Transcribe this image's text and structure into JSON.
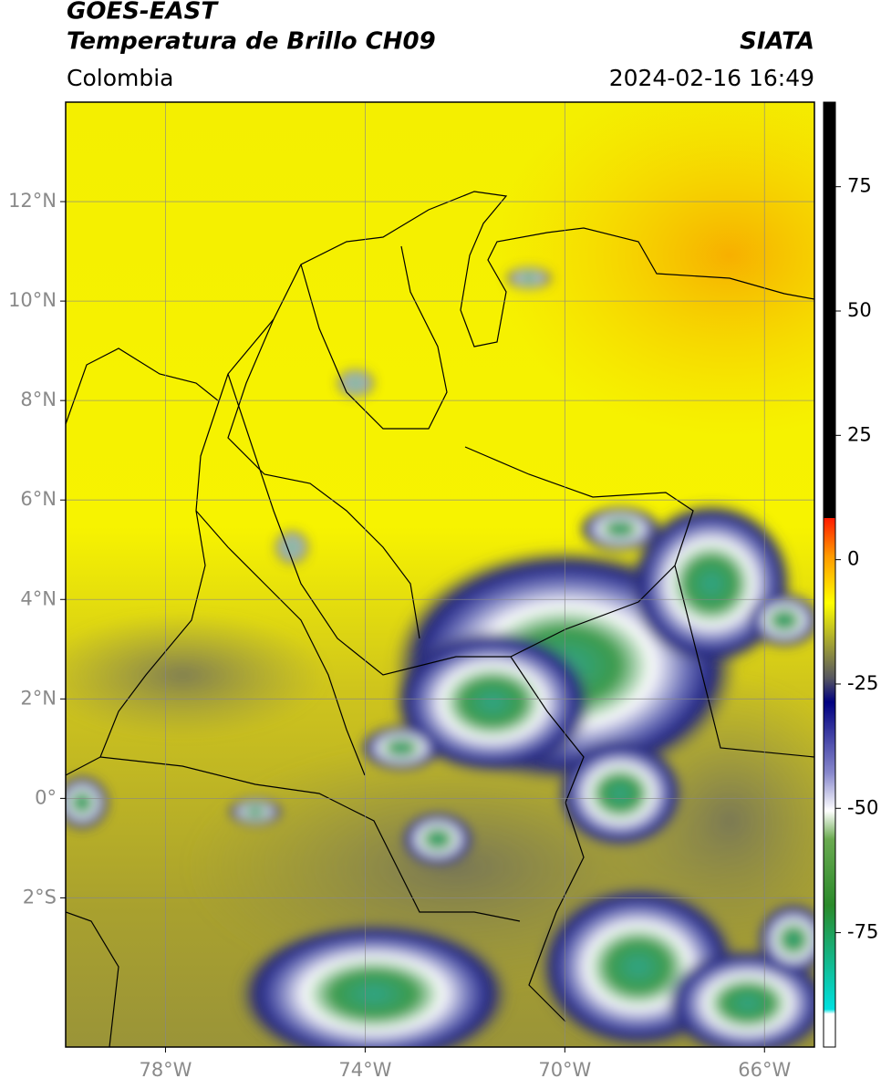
{
  "header": {
    "title": "GOES-EAST",
    "subtitle": "Temperatura de Brillo CH09",
    "source": "SIATA",
    "region": "Colombia",
    "timestamp": "2024-02-16 16:49"
  },
  "map": {
    "xlim": [
      -80,
      -65
    ],
    "ylim": [
      -5,
      14
    ],
    "xticks": [
      {
        "value": -78,
        "label": "78°W"
      },
      {
        "value": -74,
        "label": "74°W"
      },
      {
        "value": -70,
        "label": "70°W"
      },
      {
        "value": -66,
        "label": "66°W"
      }
    ],
    "yticks": [
      {
        "value": 12,
        "label": "12°N"
      },
      {
        "value": 10,
        "label": "10°N"
      },
      {
        "value": 8,
        "label": "8°N"
      },
      {
        "value": 6,
        "label": "6°N"
      },
      {
        "value": 4,
        "label": "4°N"
      },
      {
        "value": 2,
        "label": "2°N"
      },
      {
        "value": 0,
        "label": "0°"
      },
      {
        "value": -2,
        "label": "2°S"
      }
    ]
  },
  "colorbar": {
    "clim": [
      -98,
      92
    ],
    "ticks": [
      75,
      50,
      25,
      0,
      -25,
      -50,
      -75
    ]
  }
}
